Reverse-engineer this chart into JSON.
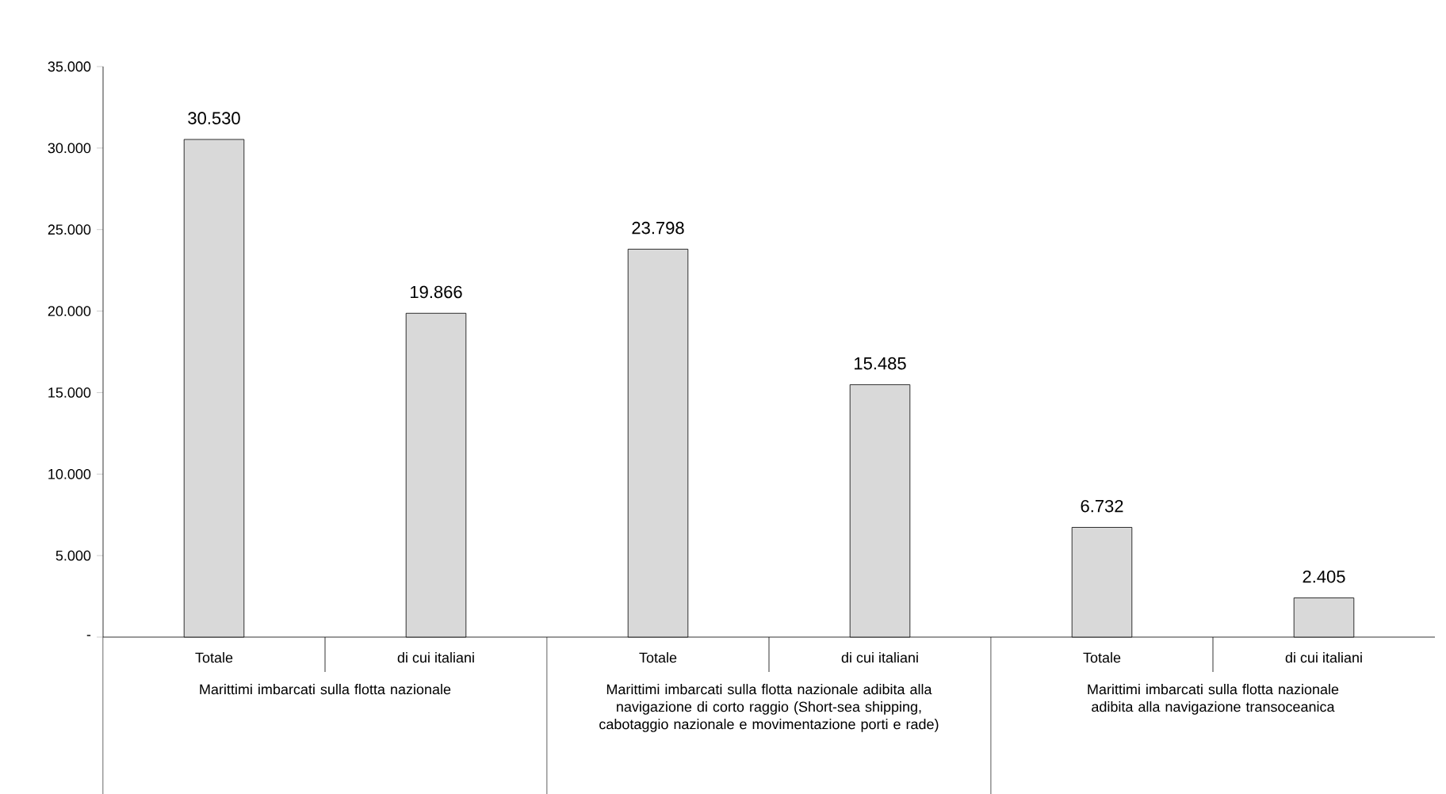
{
  "chart_data": {
    "type": "bar",
    "categories": [
      "Totale",
      "di cui italiani",
      "Totale",
      "di cui italiani",
      "Totale",
      "di cui italiani"
    ],
    "values": [
      30530,
      19866,
      23798,
      15485,
      6732,
      2405
    ],
    "value_labels": [
      "30.530",
      "19.866",
      "23.798",
      "15.485",
      "6.732",
      "2.405"
    ],
    "color": "#d9d9d9",
    "ylim": [
      0,
      35000
    ],
    "yticks": [
      {
        "value": 0,
        "label": "-"
      },
      {
        "value": 5000,
        "label": "5.000"
      },
      {
        "value": 10000,
        "label": "10.000"
      },
      {
        "value": 15000,
        "label": "15.000"
      },
      {
        "value": 20000,
        "label": "20.000"
      },
      {
        "value": 25000,
        "label": "25.000"
      },
      {
        "value": 30000,
        "label": "30.000"
      },
      {
        "value": 35000,
        "label": "35.000"
      }
    ],
    "annotations": [
      "Marittimi imbarcati sulla flotta nazionale",
      "Marittimi imbarcati sulla flotta nazionale adibita alla navigazione di corto raggio (Short-sea shipping, cabotaggio nazionale e movimentazione porti e rade)",
      "Marittimi imbarcati sulla flotta nazionale adibita alla navigazione transoceanica"
    ]
  }
}
